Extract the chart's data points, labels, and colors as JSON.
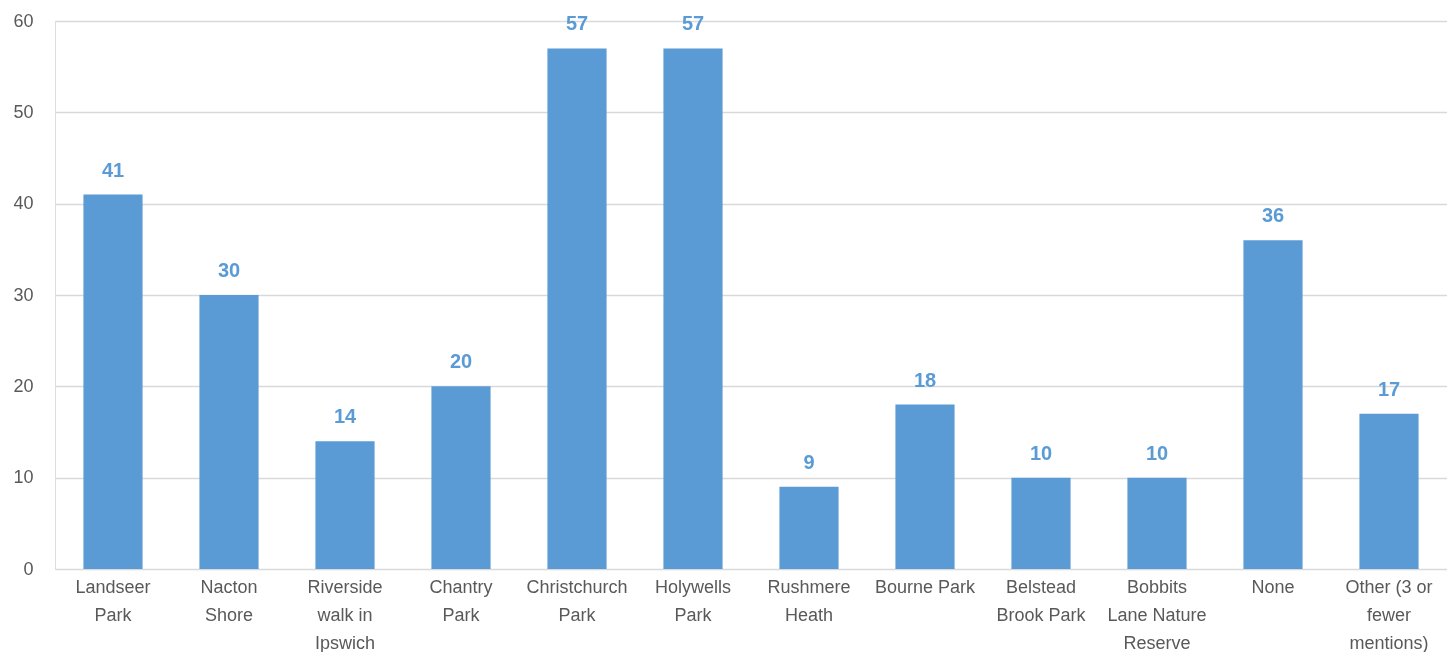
{
  "chart_data": {
    "type": "bar",
    "categories": [
      "Landseer Park",
      "Nacton Shore",
      "Riverside walk in Ipswich",
      "Chantry Park",
      "Christchurch Park",
      "Holywells Park",
      "Rushmere Heath",
      "Bourne Park",
      "Belstead Brook Park",
      "Bobbits Lane Nature Reserve",
      "None",
      "Other (3 or fewer mentions)"
    ],
    "values": [
      41,
      30,
      14,
      20,
      57,
      57,
      9,
      18,
      10,
      10,
      36,
      17
    ],
    "color": "#5b9bd5",
    "ylim": [
      0,
      60
    ],
    "yticks": [
      0,
      10,
      20,
      30,
      40,
      50,
      60
    ],
    "grid": "y",
    "data_labels": true
  }
}
